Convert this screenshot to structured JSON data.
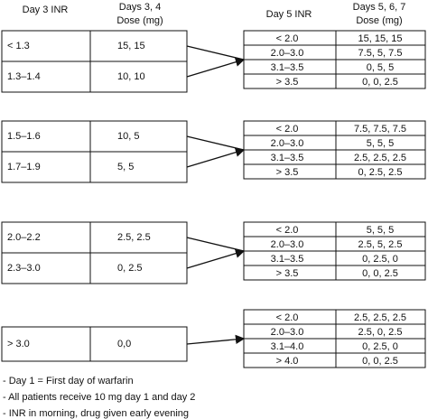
{
  "headers": {
    "day3_inr": "Day 3 INR",
    "day34_dose": [
      "Days 3, 4",
      "Dose (mg)"
    ],
    "day5_inr": "Day 5 INR",
    "day567_dose": [
      "Days 5, 6, 7",
      "Dose (mg)"
    ]
  },
  "groups": [
    {
      "left": [
        [
          "< 1.3",
          "15, 15"
        ],
        [
          "1.3–1.4",
          "10, 10"
        ]
      ],
      "right": [
        [
          "< 2.0",
          "15, 15, 15"
        ],
        [
          "2.0–3.0",
          "7.5, 5, 7.5"
        ],
        [
          "3.1–3.5",
          "0, 5, 5"
        ],
        [
          "> 3.5",
          "0, 0, 2.5"
        ]
      ]
    },
    {
      "left": [
        [
          "1.5–1.6",
          "10, 5"
        ],
        [
          "1.7–1.9",
          "5, 5"
        ]
      ],
      "right": [
        [
          "< 2.0",
          "7.5, 7.5, 7.5"
        ],
        [
          "2.0–3.0",
          "5, 5, 5"
        ],
        [
          "3.1–3.5",
          "2.5, 2.5, 2.5"
        ],
        [
          "> 3.5",
          "0, 2.5, 2.5"
        ]
      ]
    },
    {
      "left": [
        [
          "2.0–2.2",
          "2.5, 2.5"
        ],
        [
          "2.3–3.0",
          "0, 2.5"
        ]
      ],
      "right": [
        [
          "< 2.0",
          "5, 5, 5"
        ],
        [
          "2.0–3.0",
          "2.5, 5, 2.5"
        ],
        [
          "3.1–3.5",
          "0, 2.5, 0"
        ],
        [
          "> 3.5",
          "0, 0, 2.5"
        ]
      ]
    },
    {
      "left": [
        [
          "> 3.0",
          "0,0"
        ]
      ],
      "right": [
        [
          "< 2.0",
          "2.5, 2.5, 2.5"
        ],
        [
          "2.0–3.0",
          "2.5, 0, 2.5"
        ],
        [
          "3.1–4.0",
          "0, 2.5, 0"
        ],
        [
          "> 4.0",
          "0, 0, 2.5"
        ]
      ]
    }
  ],
  "notes": [
    "- Day 1 = First day of warfarin",
    "- All patients receive 10 mg day 1 and day 2",
    "- INR in morning, drug given early evening"
  ]
}
